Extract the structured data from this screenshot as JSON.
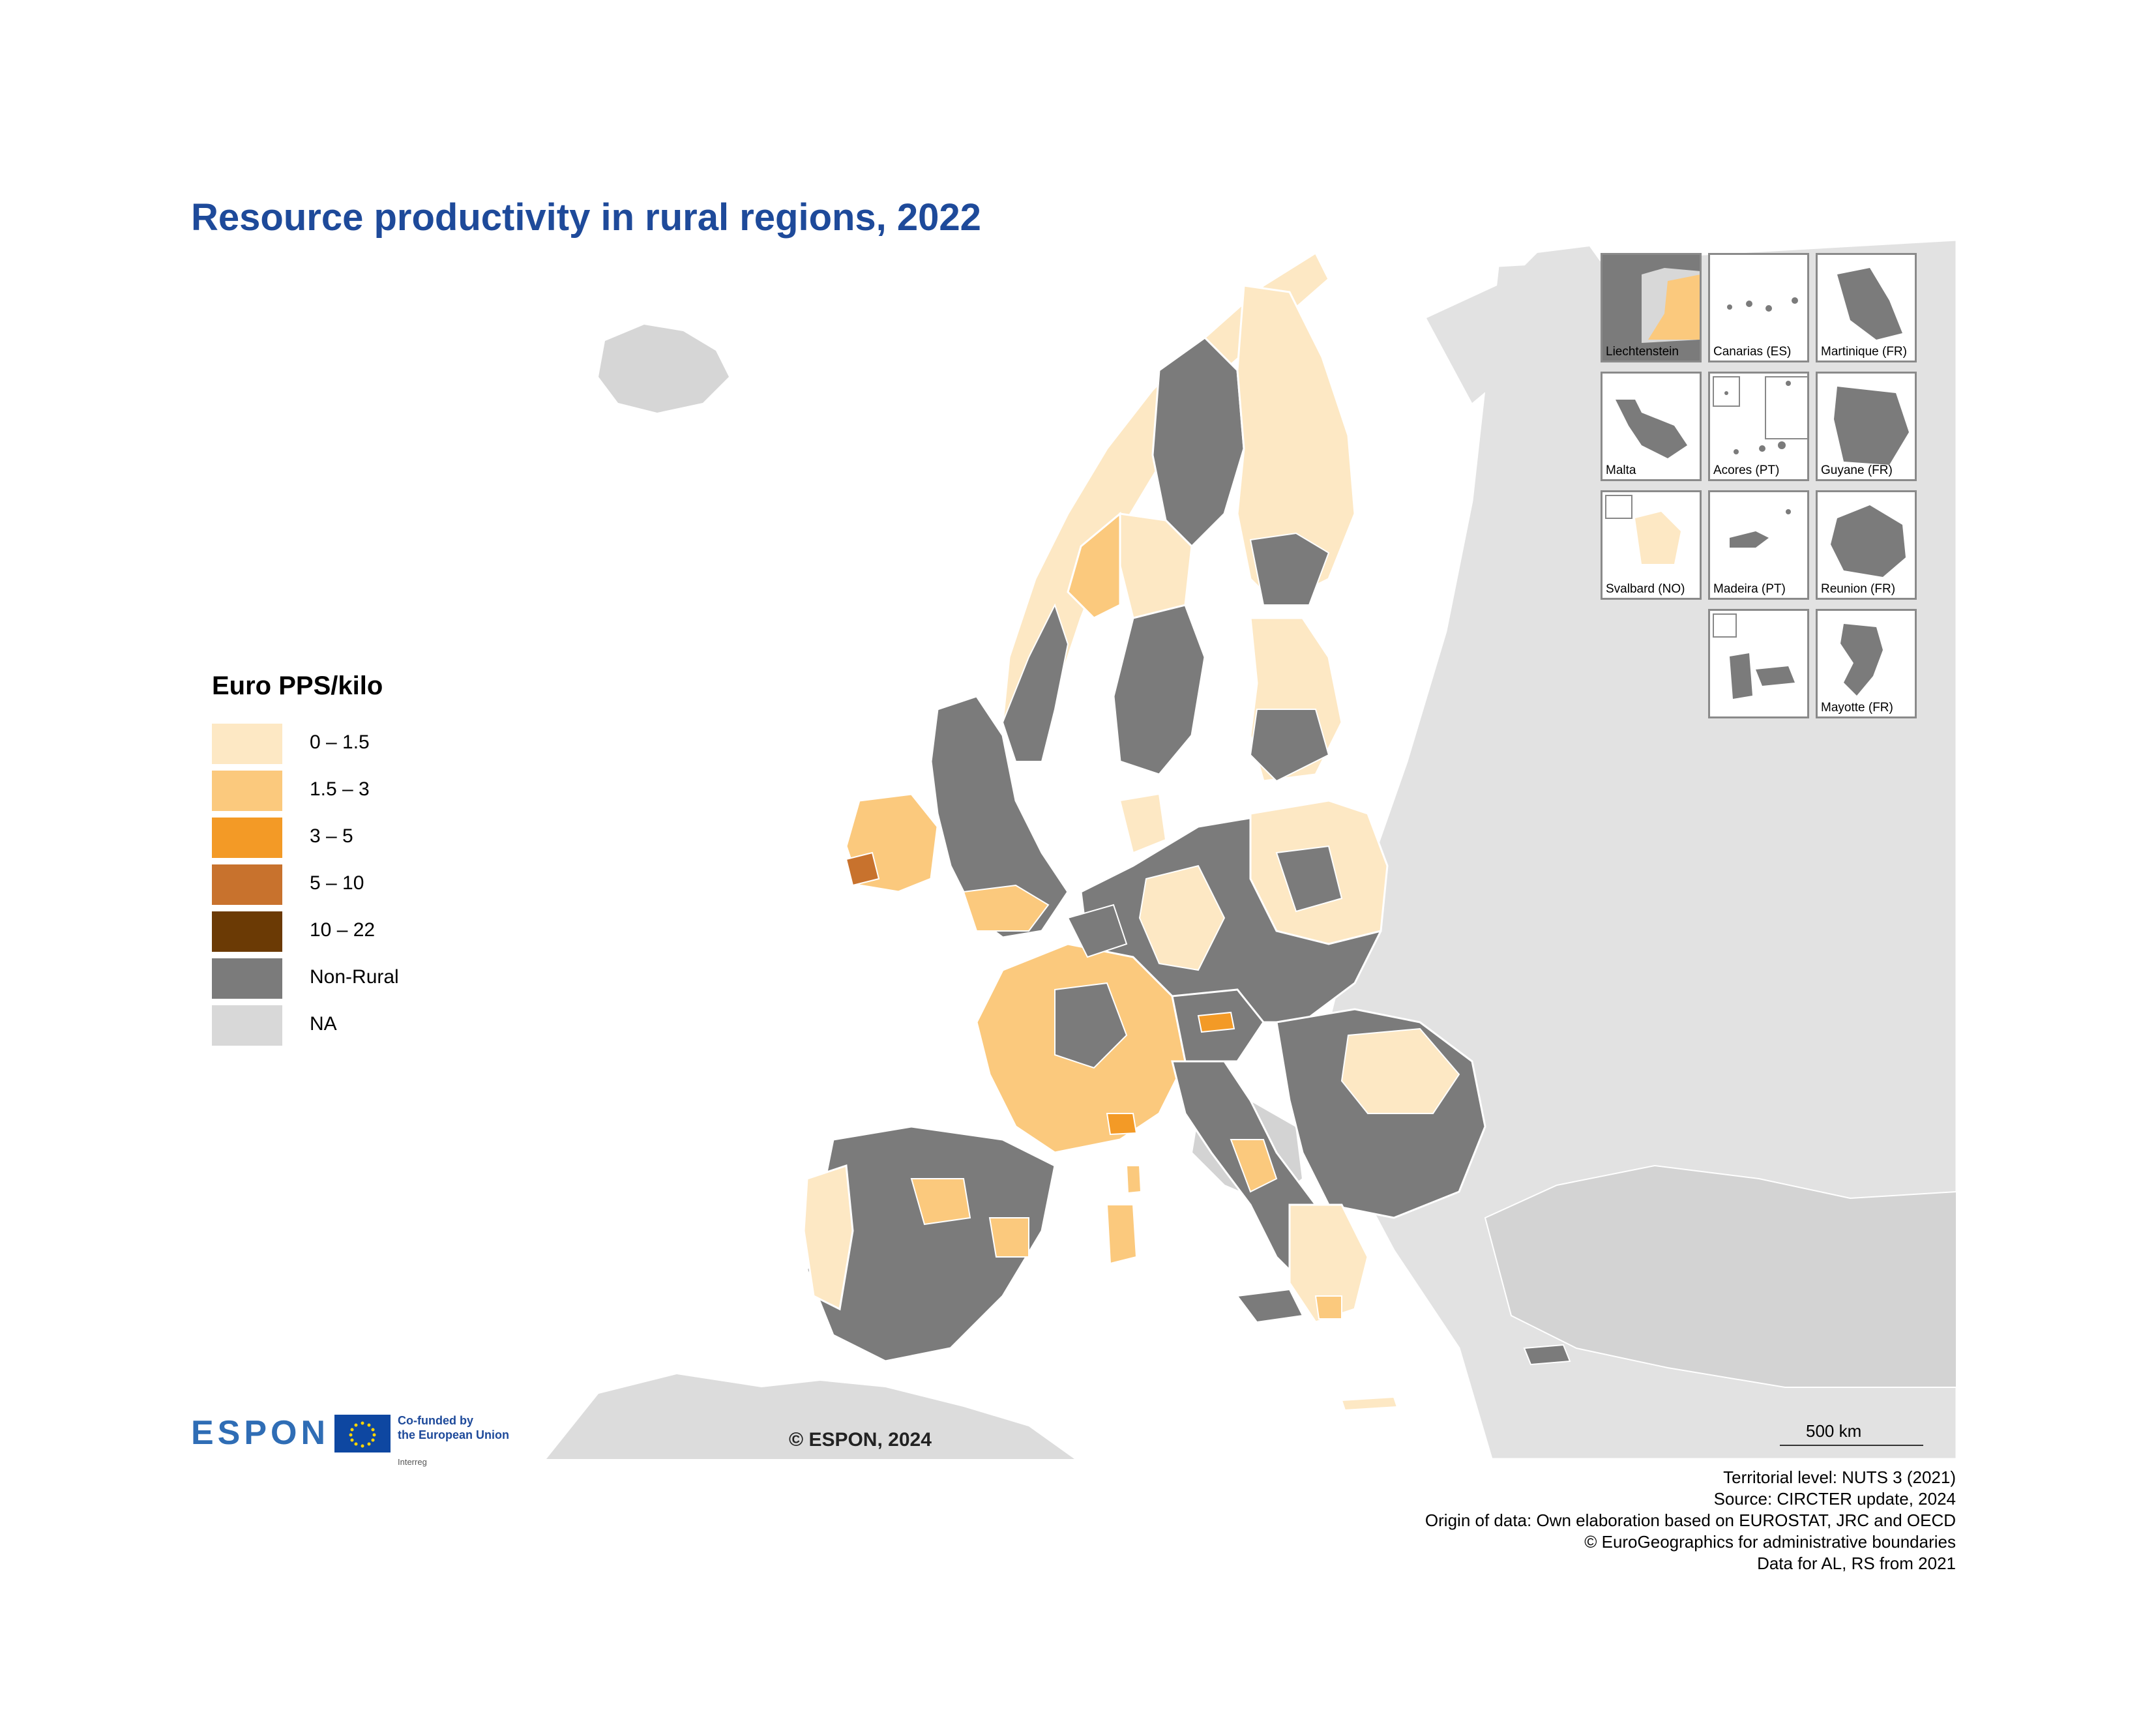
{
  "title": "Resource productivity in rural regions, 2022",
  "legend": {
    "title": "Euro PPS/kilo",
    "items": [
      {
        "label": "0 – 1.5",
        "color": "#fde8c4"
      },
      {
        "label": "1.5 – 3",
        "color": "#fbc97d"
      },
      {
        "label": "3 – 5",
        "color": "#f39a26"
      },
      {
        "label": "5 – 10",
        "color": "#c8722d"
      },
      {
        "label": "10 – 22",
        "color": "#6b3a05"
      },
      {
        "label": "Non-Rural",
        "color": "#7b7b7b"
      },
      {
        "label": "NA",
        "color": "#d8d8d8"
      }
    ]
  },
  "insets": [
    {
      "label": "Liechtenstein"
    },
    {
      "label": "Canarias (ES)"
    },
    {
      "label": "Martinique (FR)"
    },
    {
      "label": "Malta"
    },
    {
      "label": "Acores (PT)"
    },
    {
      "label": "Guyane (FR)"
    },
    {
      "label": "Svalbard (NO)"
    },
    {
      "label": "Madeira (PT)"
    },
    {
      "label": "Reunion (FR)"
    },
    {
      "label": ""
    },
    {
      "label": "Mayotte (FR)"
    }
  ],
  "scalebar": {
    "label": "500 km"
  },
  "copyright": "© ESPON, 2024",
  "logo": {
    "espon": "ESPON",
    "eu_line1": "Co-funded by",
    "eu_line2": "the European Union",
    "eu_line3": "Interreg"
  },
  "source": {
    "line1": "Territorial level: NUTS 3 (2021)",
    "line2": "Source: CIRCTER update, 2024",
    "line3": "Origin of data: Own elaboration based on EUROSTAT, JRC and OECD",
    "line4": "© EuroGeographics for administrative boundaries",
    "line5": "Data for AL, RS from 2021"
  },
  "colors": {
    "title": "#1e4a9a",
    "non_eu": "#e2e2e2",
    "sea": "#ffffff",
    "border": "#ffffff"
  }
}
